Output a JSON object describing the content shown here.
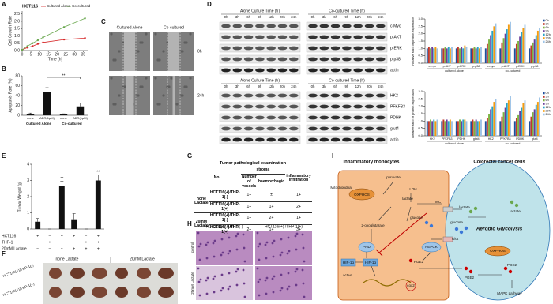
{
  "panel_letters": [
    "A",
    "B",
    "C",
    "D",
    "E",
    "F",
    "G",
    "H",
    "I"
  ],
  "chart_data": [
    {
      "type": "line",
      "title": "HCT116",
      "xlabel": "Time (h)",
      "ylabel": "Cell Growth Rate",
      "x": [
        0,
        3,
        6,
        9,
        12,
        24,
        36
      ],
      "series": [
        {
          "name": "Cultured Alone",
          "color": "#d62728",
          "values": [
            0.05,
            0.2,
            0.3,
            0.45,
            0.55,
            0.75,
            0.85
          ]
        },
        {
          "name": "Co-cultured",
          "color": "#6aa84f",
          "values": [
            0.05,
            0.3,
            0.5,
            0.7,
            0.9,
            1.6,
            2.2
          ]
        }
      ],
      "xlim": [
        0,
        38
      ],
      "xticks": [
        0,
        5,
        10,
        15,
        20,
        25,
        30,
        35
      ],
      "ylim": [
        0,
        2.7
      ],
      "yticks": [
        {
          "value": 0,
          "label": "0.0"
        },
        0.5,
        {
          "value": 1,
          "label": "1.0"
        },
        1.5,
        {
          "value": 2,
          "label": "2.0"
        },
        2.5
      ]
    },
    {
      "type": "bar",
      "ylabel": "Apoptosis Rate (%)",
      "categories": [
        "none",
        "ADR(1μM)",
        "none",
        "ADR(1μM)"
      ],
      "groups": [
        "Cultured Alone",
        "Co-cultured"
      ],
      "values": [
        3,
        48,
        2,
        18
      ],
      "errors": [
        1.5,
        8,
        1,
        7
      ],
      "color": "#111111",
      "comparison_label": "**",
      "ylim": [
        0,
        80
      ],
      "yticks": [
        0,
        20,
        40,
        60,
        80
      ]
    },
    {
      "type": "grouped_bar",
      "ylabel": "Relative ratio of protein expression",
      "categories": [
        "c-myc",
        "p-AKT",
        "p-ERK",
        "p-p38",
        "c-myc",
        "p-AKT",
        "p-ERK",
        "p-p38"
      ],
      "groups": [
        "cultured alone",
        "co-cultured"
      ],
      "series": [
        {
          "name": "0h",
          "color": "#1f4e9c",
          "values": [
            1,
            1,
            1,
            1,
            1,
            1,
            1,
            1
          ]
        },
        {
          "name": "3h",
          "color": "#c0392b",
          "values": [
            1.1,
            1.0,
            1.1,
            1.0,
            1.3,
            1.4,
            1.3,
            1.2
          ]
        },
        {
          "name": "6h",
          "color": "#7cb342",
          "values": [
            1.0,
            1.1,
            1.0,
            1.1,
            1.6,
            1.7,
            1.5,
            1.4
          ]
        },
        {
          "name": "9h",
          "color": "#6a3d9a",
          "values": [
            1.1,
            1.0,
            1.1,
            1.0,
            1.9,
            2.0,
            1.8,
            1.6
          ]
        },
        {
          "name": "12h",
          "color": "#29a3c7",
          "values": [
            1.0,
            1.1,
            1.0,
            1.1,
            2.2,
            2.3,
            2.1,
            1.9
          ]
        },
        {
          "name": "20h",
          "color": "#f39c12",
          "values": [
            1.1,
            1.0,
            1.2,
            1.0,
            2.5,
            2.6,
            2.4,
            2.2
          ]
        },
        {
          "name": "24h",
          "color": "#9dc3e6",
          "values": [
            1.0,
            1.1,
            1.1,
            1.1,
            2.7,
            2.8,
            2.6,
            2.4
          ]
        }
      ],
      "ylim": [
        0,
        3
      ],
      "yticks": [
        {
          "value": 0,
          "label": "0.0"
        },
        0.5,
        {
          "value": 1,
          "label": "1.0"
        },
        1.5,
        {
          "value": 2,
          "label": "2.0"
        },
        2.5,
        {
          "value": 3,
          "label": "3.0"
        }
      ]
    },
    {
      "type": "grouped_bar",
      "ylabel": "Relative ratio of protein expression",
      "categories": [
        "HK2",
        "PFKFB3",
        "PDHK",
        "glut4",
        "HK2",
        "PFKFB3",
        "PDHK",
        "glut4"
      ],
      "groups": [
        "cultured alone",
        "co-cultured"
      ],
      "series": [
        {
          "name": "0h",
          "color": "#1f4e9c",
          "values": [
            1,
            1,
            1,
            1,
            1,
            1,
            1,
            1
          ]
        },
        {
          "name": "3h",
          "color": "#c0392b",
          "values": [
            1.0,
            1.1,
            1.0,
            1.1,
            1.2,
            1.3,
            1.2,
            1.3
          ]
        },
        {
          "name": "6h",
          "color": "#7cb342",
          "values": [
            1.1,
            1.0,
            1.1,
            1.0,
            1.5,
            1.6,
            1.4,
            1.6
          ]
        },
        {
          "name": "9h",
          "color": "#6a3d9a",
          "values": [
            1.0,
            1.1,
            1.0,
            1.1,
            1.8,
            1.9,
            1.7,
            1.8
          ]
        },
        {
          "name": "12h",
          "color": "#29a3c7",
          "values": [
            1.1,
            1.0,
            1.1,
            1.0,
            2.0,
            2.2,
            1.9,
            2.1
          ]
        },
        {
          "name": "20h",
          "color": "#f39c12",
          "values": [
            1.0,
            1.1,
            1.1,
            1.0,
            2.3,
            2.4,
            2.2,
            2.3
          ]
        },
        {
          "name": "24h",
          "color": "#9dc3e6",
          "values": [
            1.1,
            1.0,
            1.0,
            1.1,
            2.5,
            2.7,
            2.4,
            2.6
          ]
        }
      ],
      "ylim": [
        0,
        3
      ],
      "yticks": [
        {
          "value": 0,
          "label": "0.0"
        },
        0.5,
        {
          "value": 1,
          "label": "1.0"
        },
        1.5,
        {
          "value": 2,
          "label": "2.0"
        },
        2.5,
        {
          "value": 3,
          "label": "3.0"
        }
      ]
    },
    {
      "type": "bar",
      "ylabel": "Tumor Weight (g)",
      "values": [
        0.45,
        0,
        2.65,
        0.6,
        0,
        3.0
      ],
      "errors": [
        0.2,
        0,
        0.3,
        0.35,
        0,
        0.35
      ],
      "color": "#111111",
      "significance": [
        null,
        null,
        "**",
        null,
        null,
        "**"
      ],
      "conditions": [
        {
          "name": "HCT116",
          "signs": [
            "+",
            "−",
            "+",
            "+",
            "−",
            "+"
          ]
        },
        {
          "name": "THP-1",
          "signs": [
            "−",
            "+",
            "+",
            "−",
            "+",
            "+"
          ]
        },
        {
          "name": "20mM Lactate",
          "signs": [
            "−",
            "−",
            "−",
            "+",
            "+",
            "+"
          ]
        }
      ],
      "ylim": [
        0,
        4
      ],
      "yticks": [
        0,
        1,
        2,
        3,
        4
      ]
    }
  ],
  "panel_c": {
    "columns": [
      "Cultured Alone",
      "Co-cultured"
    ],
    "rows": [
      "0h",
      "24h"
    ]
  },
  "panel_d": {
    "blots": [
      {
        "headers": [
          "Alone Culture Time (h)",
          "Co-cultured Time (h)"
        ],
        "times": [
          "0h",
          "3h",
          "6h",
          "9h",
          "12h",
          "20h",
          "24h"
        ],
        "proteins": [
          "c-Myc",
          "p-AKT",
          "p-ERK",
          "p-p38",
          "actin"
        ]
      },
      {
        "headers": [
          "Alone Culture Time (h)",
          "Co-cultured Time (h)"
        ],
        "times": [
          "0h",
          "3h",
          "6h",
          "9h",
          "12h",
          "20h",
          "24h"
        ],
        "proteins": [
          "HK2",
          "PFKFB3",
          "PDHK",
          "glut4",
          "actin"
        ]
      }
    ]
  },
  "panel_f": {
    "columns": [
      "none Lactate",
      "20mM Lactate"
    ],
    "rows": [
      "HCT116(+)/THP-1(-)",
      "HCT116(+)/THP-1(+)"
    ]
  },
  "panel_g": {
    "title": "Tumor pathological examination",
    "no": "No.",
    "stroma": "stroma",
    "vessels": "Number of vessels",
    "haemorrhagic": "haemorrhagic",
    "infiltration": "inflammatory infiltration",
    "groups": [
      {
        "label": "none Lactate",
        "rows": [
          [
            "HCT116(+)/THP-1(-)",
            "1+",
            "±",
            "1+"
          ],
          [
            "HCT116(+)/THP-1(+)",
            "1+",
            "1+",
            "2+"
          ]
        ]
      },
      {
        "label": "20mM Lactate",
        "rows": [
          [
            "HCT116(+)/THP-1(-)",
            "1+",
            "2+",
            "1+"
          ],
          [
            "HCT116(+)/THP-1(+)",
            "2+",
            "1+",
            "3+"
          ]
        ]
      }
    ]
  },
  "panel_h": {
    "columns": [
      "HCT116(+) /THP-1(-)",
      "HCT116(+) /THP-1(+)"
    ],
    "rows": [
      "control",
      "20mM Lactate"
    ]
  },
  "panel_i": {
    "left_title": "Inflammatory monocytes",
    "right_title": "Colorectal cancer cells",
    "mitochondrial": "Mitochondrial",
    "oxphos_left": "OXPHOS",
    "pyruvate": "pyruvate",
    "ldh": "LDH",
    "lactate_left": "lactate",
    "mct": "MCT",
    "lactate_out": "lactate",
    "oxoglutarate": "2-oxoglutarate",
    "glucose_left": "glucose",
    "glucose_out": "glucose",
    "glut": "Glut",
    "phd": "PHD",
    "hif_left": "HIF-1α",
    "hif_right": "HIF-1α",
    "active": "active",
    "pepck": "PEPCK",
    "pge2_left": "PGE2",
    "pge2_out": "PGE2",
    "pge2_right": "PGE2",
    "cox2": "cox2",
    "aerobic": "Aerobic Glycolysis",
    "oxphos_right": "OXPHOS",
    "mapk": "MAPK pathway",
    "lactate_right": "lactate"
  }
}
